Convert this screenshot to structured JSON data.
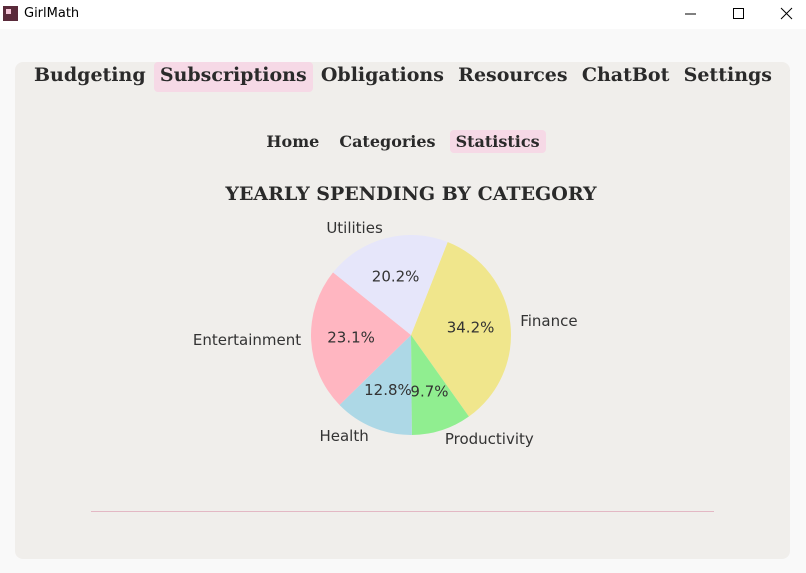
{
  "window": {
    "title": "GirlMath"
  },
  "tabs": [
    "Budgeting",
    "Subscriptions",
    "Obligations",
    "Resources",
    "ChatBot",
    "Settings"
  ],
  "active_tab": 1,
  "subtabs": [
    "Home",
    "Categories",
    "Statistics"
  ],
  "active_subtab": 2,
  "chart_data": {
    "type": "pie",
    "title": "YEARLY SPENDING BY CATEGORY",
    "categories": [
      "Finance",
      "Productivity",
      "Health",
      "Entertainment",
      "Utilities"
    ],
    "values": [
      34.2,
      9.7,
      12.8,
      23.1,
      20.2
    ],
    "value_labels": [
      "34.2%",
      "9.7%",
      "12.8%",
      "23.1%",
      "20.2%"
    ],
    "colors": [
      "#f0e68c",
      "#90ee90",
      "#add8e6",
      "#ffb6c1",
      "#e6e6fa"
    ]
  }
}
